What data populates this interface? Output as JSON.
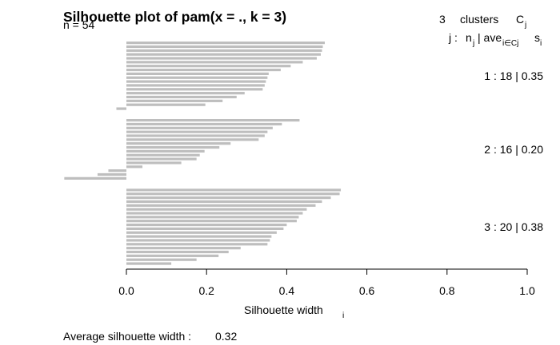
{
  "chart_data": {
    "type": "bar",
    "orientation": "horizontal",
    "title": "Silhouette plot of pam(x = ., k = 3)",
    "n_label": "n = 54",
    "xlabel": "Silhouette width",
    "xlabel_sub": "i",
    "xlim": [
      0,
      1
    ],
    "xticks": [
      "0.0",
      "0.2",
      "0.4",
      "0.6",
      "0.8",
      "1.0"
    ],
    "bar_color": "#bebebe",
    "header": {
      "line1_count": "3",
      "line1_text": "clusters",
      "line1_C": "C",
      "line1_C_sub": "j",
      "line2_j": "j :",
      "line2_n": "n",
      "line2_n_sub": "j",
      "line2_ave": "| ave",
      "line2_ave_sub": "i∈Cj",
      "line2_s": "s",
      "line2_s_sub": "i"
    },
    "clusters": [
      {
        "label": "1 :   18  |  0.35",
        "values": [
          0.495,
          0.49,
          0.488,
          0.485,
          0.475,
          0.44,
          0.41,
          0.385,
          0.355,
          0.352,
          0.348,
          0.345,
          0.34,
          0.295,
          0.275,
          0.24,
          0.197,
          -0.025
        ]
      },
      {
        "label": "2 :   16  |  0.20",
        "values": [
          0.432,
          0.388,
          0.365,
          0.352,
          0.345,
          0.33,
          0.26,
          0.232,
          0.195,
          0.183,
          0.175,
          0.137,
          0.04,
          -0.045,
          -0.072,
          -0.155
        ]
      },
      {
        "label": "3 :   20  |  0.38",
        "values": [
          0.535,
          0.532,
          0.51,
          0.488,
          0.472,
          0.45,
          0.44,
          0.43,
          0.425,
          0.4,
          0.392,
          0.375,
          0.362,
          0.358,
          0.352,
          0.285,
          0.255,
          0.23,
          0.175,
          0.112
        ]
      }
    ],
    "footer_label": "Average silhouette width :",
    "footer_value": "0.32"
  }
}
